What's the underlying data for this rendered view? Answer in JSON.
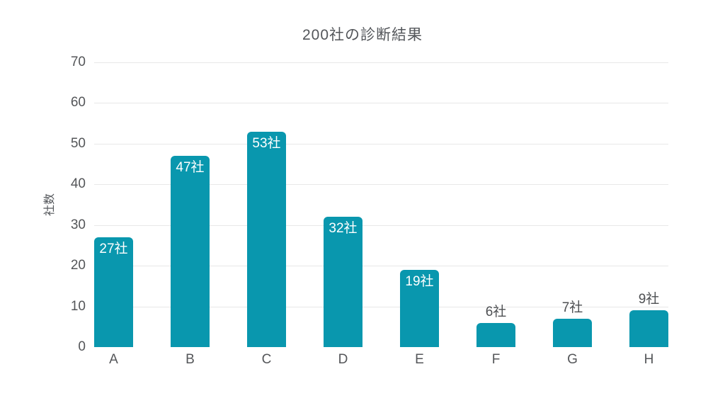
{
  "chart_data": {
    "type": "bar",
    "title": "200社の診断結果",
    "xlabel": "",
    "ylabel": "社数",
    "categories": [
      "A",
      "B",
      "C",
      "D",
      "E",
      "F",
      "G",
      "H"
    ],
    "values": [
      27,
      47,
      53,
      32,
      19,
      6,
      7,
      9
    ],
    "data_labels": [
      "27社",
      "47社",
      "53社",
      "32社",
      "19社",
      "6社",
      "7社",
      "9社"
    ],
    "ylim": [
      0,
      70
    ],
    "yticks": [
      0,
      10,
      20,
      30,
      40,
      50,
      60,
      70
    ],
    "grid": "horizontal",
    "legend": "none",
    "colors": {
      "bar": "#0997ae",
      "gridline": "#e8e8e8",
      "axis_text": "#545659",
      "title_text": "#53565a",
      "label_inside": "#ffffff",
      "label_outside": "#4d4f52",
      "background": "#ffffff"
    }
  }
}
